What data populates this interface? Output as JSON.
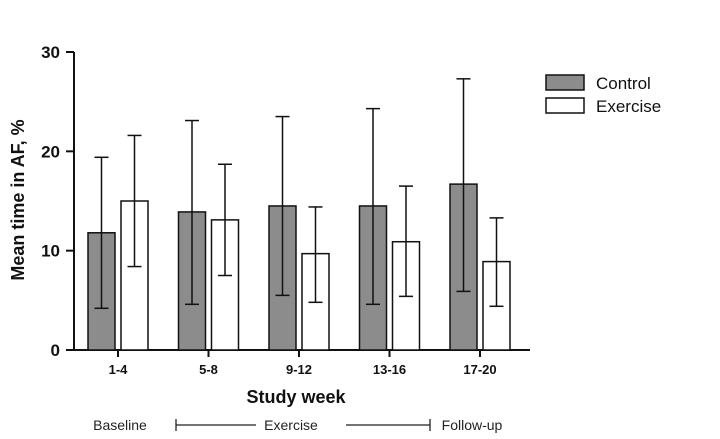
{
  "chart_data": {
    "type": "bar",
    "xlabel": "Study week",
    "ylabel": "Mean time in  AF, %",
    "ylim": [
      0,
      30
    ],
    "yticks": [
      0,
      10,
      20,
      30
    ],
    "categories": [
      "1-4",
      "5-8",
      "9-12",
      "13-16",
      "17-20"
    ],
    "series": [
      {
        "name": "Control",
        "color": "#8c8c8c",
        "values": [
          11.8,
          13.9,
          14.5,
          14.5,
          16.7
        ],
        "error_low": [
          4.2,
          4.6,
          5.5,
          4.6,
          5.9
        ],
        "error_high": [
          19.4,
          23.1,
          23.5,
          24.3,
          27.3
        ]
      },
      {
        "name": "Exercise",
        "color": "#ffffff",
        "values": [
          15.0,
          13.1,
          9.7,
          10.9,
          8.9
        ],
        "error_low": [
          8.4,
          7.5,
          4.8,
          5.4,
          4.4
        ],
        "error_high": [
          21.6,
          18.7,
          14.4,
          16.5,
          13.3
        ]
      }
    ],
    "legend_position": "top-right",
    "grid": false,
    "phases": {
      "baseline": "Baseline",
      "exercise": "Exercise",
      "followup": "Follow-up"
    }
  }
}
